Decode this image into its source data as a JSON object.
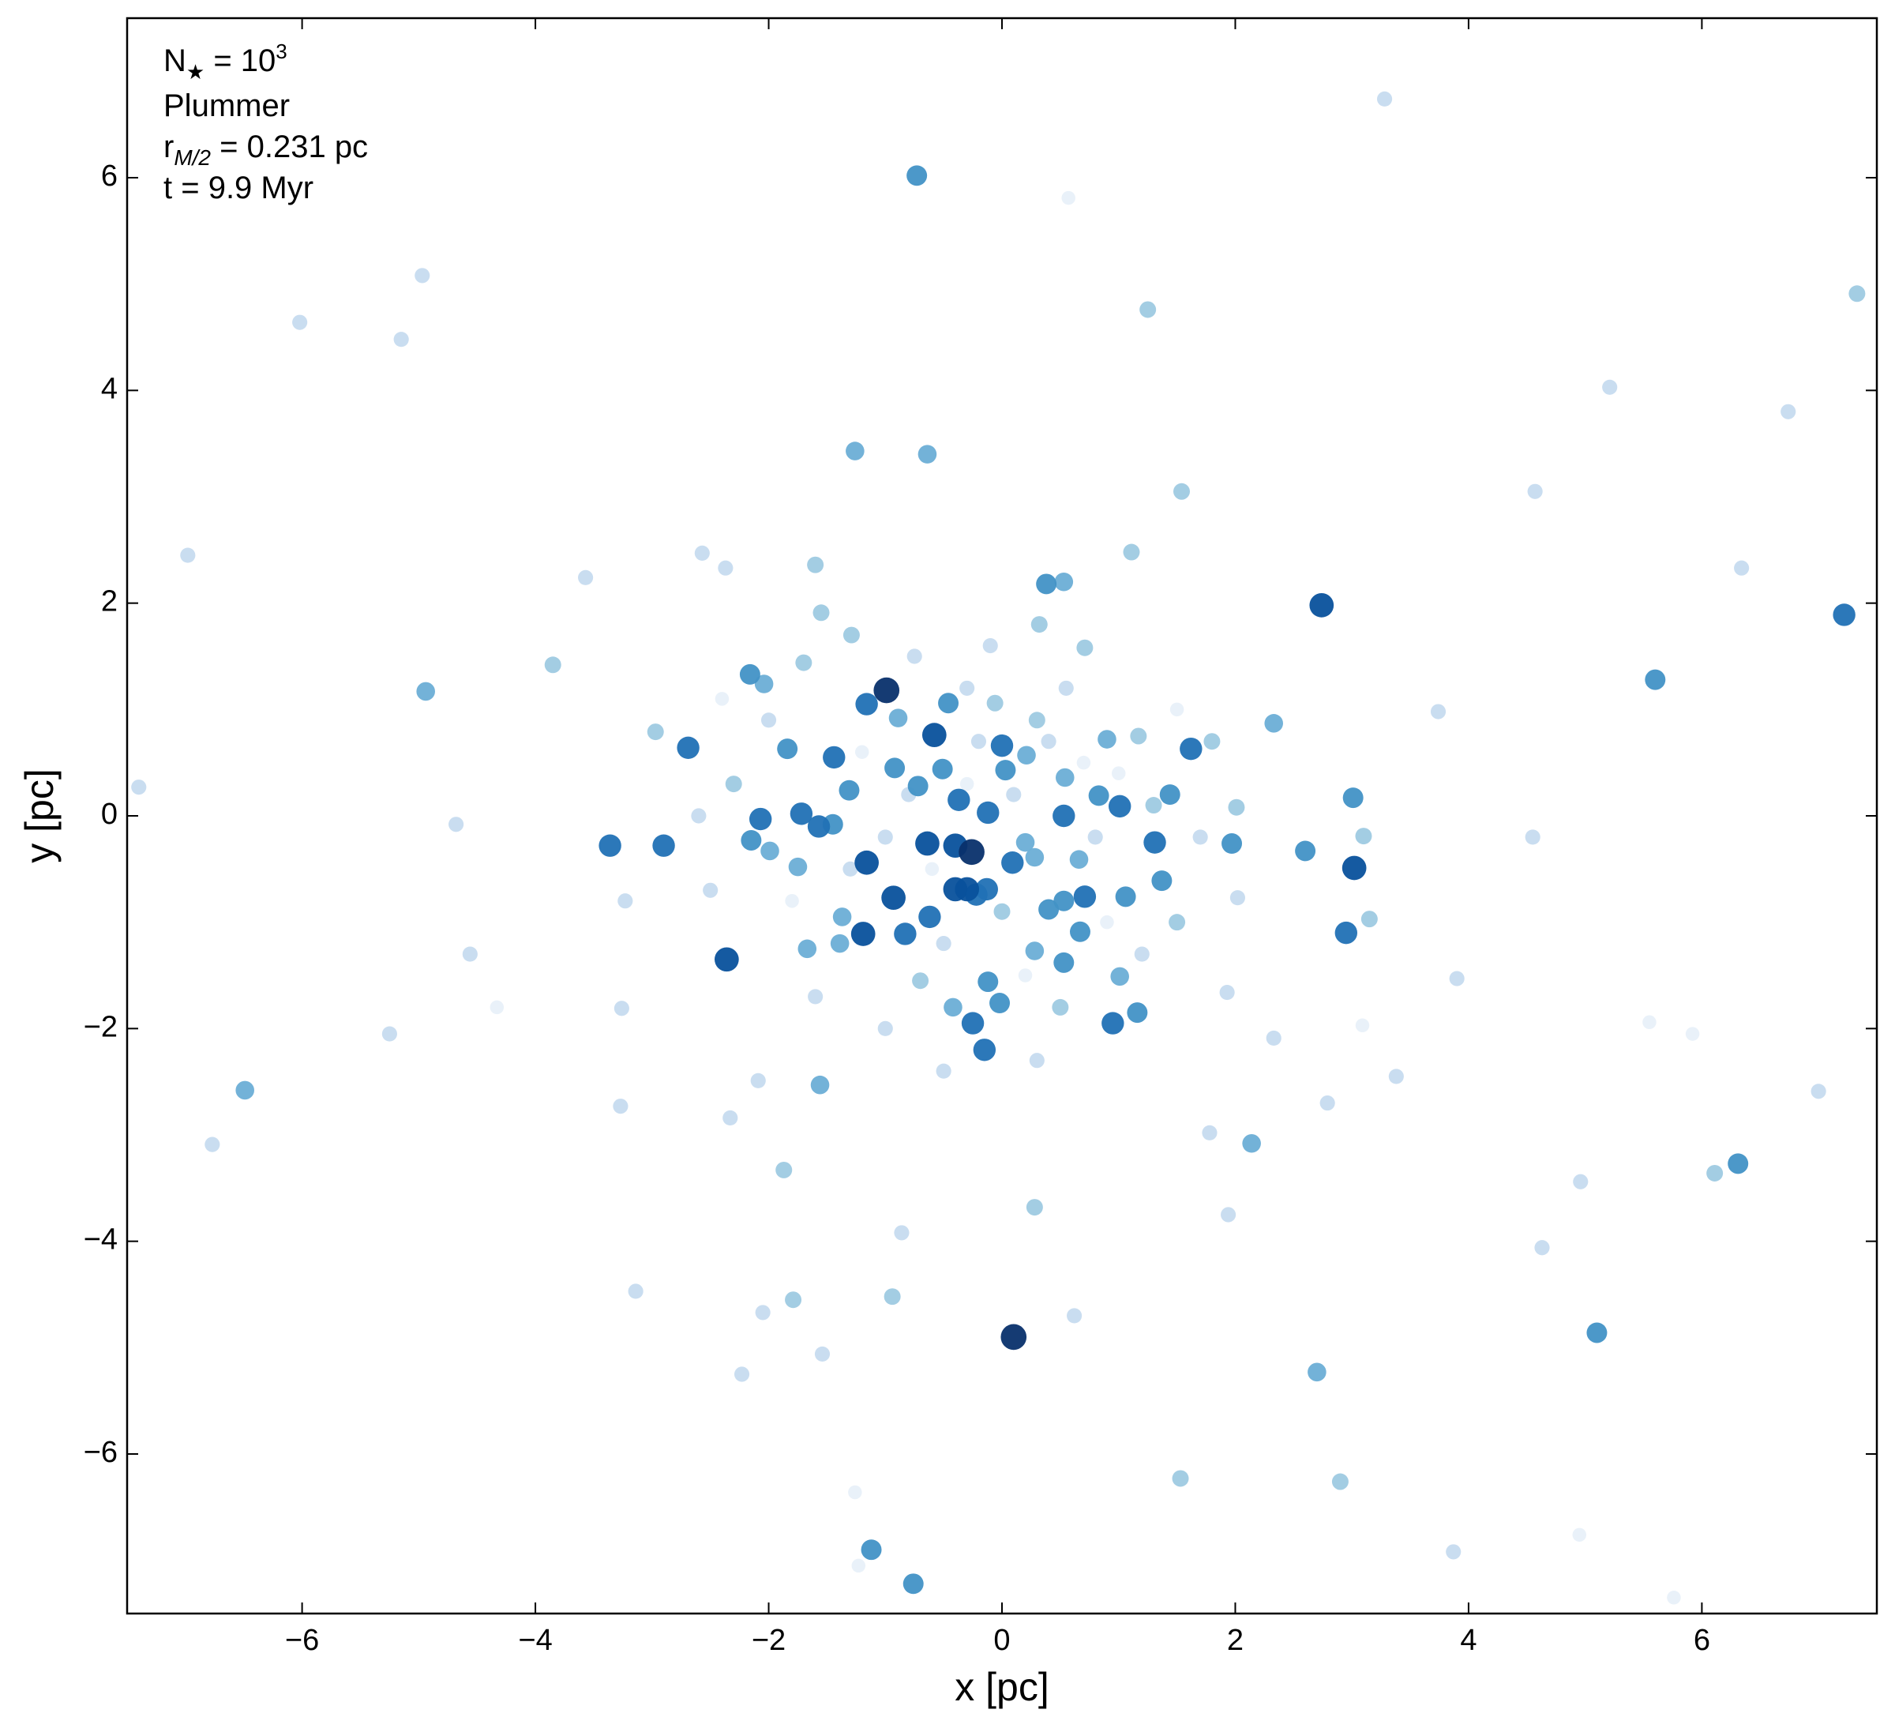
{
  "chart_data": {
    "type": "scatter",
    "xlabel": "x [pc]",
    "ylabel": "y [pc]",
    "annotation": [
      [
        "N",
        "★",
        " = 10",
        "3"
      ],
      [
        "Plummer"
      ],
      [
        "r",
        "M/2",
        " = 0.231 pc"
      ],
      [
        "t = 9.9 Myr"
      ]
    ],
    "xlim": [
      -7.5,
      7.5
    ],
    "ylim": [
      -7.5,
      7.5
    ],
    "xticks": [
      {
        "value": -6,
        "label": "−6"
      },
      {
        "value": -4,
        "label": "−4"
      },
      {
        "value": -2,
        "label": "−2"
      },
      0,
      2,
      4,
      6
    ],
    "yticks": [
      {
        "value": -6,
        "label": "−6"
      },
      {
        "value": -4,
        "label": "−4"
      },
      {
        "value": -2,
        "label": "−2"
      },
      0,
      2,
      4,
      6
    ],
    "grid": false,
    "series": [
      {
        "color": "#e3eef8",
        "x": [
          0.57,
          -4.33,
          3.09,
          5.55,
          5.92,
          5.76,
          4.95,
          -1.23,
          -1.26,
          -1.2,
          -0.6,
          0.7,
          0.2,
          -1.8,
          1.0,
          -0.3,
          0.9,
          -2.4,
          1.5
        ],
        "y": [
          5.81,
          -1.8,
          -1.97,
          -1.94,
          -2.05,
          -7.35,
          -6.76,
          -7.05,
          -6.36,
          0.6,
          -0.5,
          0.5,
          -1.5,
          -0.8,
          0.4,
          0.3,
          -1.0,
          1.1,
          1.0
        ]
      },
      {
        "color": "#c6dbef",
        "x": [
          -6.98,
          4.57,
          6.74,
          5.21,
          -6.02,
          -5.15,
          -4.97,
          3.28,
          7.0,
          3.87,
          4.96,
          4.63,
          4.55,
          6.34,
          3.74,
          0.62,
          -1.54,
          -2.23,
          -2.05,
          -3.14,
          -2.33,
          -2.09,
          -3.27,
          -5.25,
          -6.77,
          -7.4,
          -4.68,
          -4.56,
          -3.26,
          -3.23,
          1.94,
          1.78,
          2.33,
          2.79,
          3.38,
          3.9,
          -2.57,
          -2.37,
          -3.57,
          -0.86,
          1.93,
          2.02,
          -0.3,
          -0.75,
          0.55,
          -2.5,
          -2.6,
          -1.0,
          0.3,
          -0.5,
          1.7,
          -1.0,
          -0.8,
          0.1,
          -0.2,
          0.8,
          -1.3,
          0.4,
          -0.5,
          -2.0,
          -1.6,
          1.2,
          -0.1
        ],
        "y": [
          2.45,
          3.05,
          3.8,
          4.03,
          4.64,
          4.48,
          5.08,
          6.74,
          -2.59,
          -6.92,
          -3.44,
          -4.06,
          -0.2,
          2.33,
          0.98,
          -4.7,
          -5.06,
          -5.25,
          -4.67,
          -4.47,
          -2.84,
          -2.49,
          -2.73,
          -2.05,
          -3.09,
          0.27,
          -0.08,
          -1.3,
          -1.81,
          -0.8,
          -3.75,
          -2.98,
          -2.09,
          -2.7,
          -2.45,
          -1.53,
          2.47,
          2.33,
          2.24,
          -3.92,
          -1.66,
          -0.77,
          1.2,
          1.5,
          1.2,
          -0.7,
          0.0,
          -2.0,
          -2.3,
          -2.4,
          -0.2,
          -0.2,
          0.2,
          0.2,
          0.7,
          -0.2,
          -0.5,
          0.7,
          -1.2,
          0.9,
          -1.7,
          -1.3,
          1.6
        ]
      },
      {
        "color": "#9ecae1",
        "x": [
          7.33,
          1.25,
          1.54,
          1.53,
          2.9,
          6.11,
          0.28,
          -0.94,
          -1.79,
          -1.87,
          -3.85,
          3.15,
          3.1,
          2.01,
          1.11,
          0.32,
          -1.6,
          -1.55,
          -2.97,
          -1.7,
          -1.29,
          0.71,
          1.17,
          -0.06,
          0.3,
          1.3,
          -2.3,
          0.0,
          0.5,
          -0.7,
          1.5,
          1.8
        ],
        "y": [
          4.91,
          4.76,
          3.05,
          -6.23,
          -6.26,
          -3.36,
          -3.68,
          -4.52,
          -4.55,
          -3.33,
          1.42,
          -0.97,
          -0.19,
          0.08,
          2.48,
          1.8,
          2.36,
          1.91,
          0.79,
          1.44,
          1.7,
          1.58,
          0.75,
          1.06,
          0.9,
          0.1,
          0.3,
          -0.9,
          -1.8,
          -1.55,
          -1.0,
          0.7
        ]
      },
      {
        "color": "#6baed6",
        "x": [
          -4.94,
          -6.49,
          2.7,
          -1.26,
          -0.64,
          2.14,
          2.33,
          -1.56,
          0.53,
          0.28,
          -1.99,
          -0.89,
          1.01,
          0.28,
          0.66,
          0.21,
          0.2,
          0.54,
          -1.75,
          -1.37,
          -1.67,
          -1.39,
          -0.42,
          -2.04,
          0.9
        ],
        "y": [
          1.17,
          -2.58,
          -5.23,
          3.43,
          3.4,
          -3.08,
          0.87,
          -2.53,
          2.2,
          -1.27,
          -0.33,
          0.92,
          -1.51,
          -0.39,
          -0.41,
          0.57,
          -0.25,
          0.36,
          -0.48,
          -0.95,
          -1.25,
          -1.2,
          -1.8,
          1.24,
          0.72
        ]
      },
      {
        "color": "#4292c6",
        "x": [
          -0.73,
          5.6,
          6.31,
          5.1,
          -0.76,
          -1.12,
          3.01,
          2.6,
          1.97,
          0.38,
          0.03,
          1.37,
          1.44,
          1.16,
          0.67,
          0.53,
          0.4,
          -0.12,
          -0.02,
          -2.15,
          -2.16,
          -1.84,
          -1.31,
          -1.45,
          -0.92,
          -0.51,
          0.53,
          -0.72,
          0.83,
          1.06,
          -0.46
        ],
        "y": [
          6.02,
          1.28,
          -3.27,
          -4.86,
          -7.22,
          -6.9,
          0.17,
          -0.33,
          -0.26,
          2.18,
          0.43,
          -0.61,
          0.2,
          -1.85,
          -1.09,
          -1.38,
          -0.88,
          -1.56,
          -1.76,
          -0.23,
          1.33,
          0.63,
          0.24,
          -0.08,
          0.45,
          0.44,
          -0.8,
          0.28,
          0.19,
          -0.76,
          1.06
        ]
      },
      {
        "color": "#2171b5",
        "x": [
          7.22,
          -3.36,
          -2.9,
          -2.69,
          2.95,
          1.62,
          -0.62,
          -0.83,
          0.09,
          -0.13,
          -0.37,
          -0.12,
          0.0,
          0.53,
          1.01,
          1.31,
          0.95,
          -0.25,
          -0.15,
          -1.16,
          -1.44,
          -1.72,
          -1.57,
          -2.07,
          -0.22,
          0.71
        ],
        "y": [
          1.89,
          -0.28,
          -0.28,
          0.64,
          -1.1,
          0.63,
          -0.95,
          -1.11,
          -0.44,
          -0.69,
          0.15,
          0.03,
          0.66,
          0.0,
          0.09,
          -0.25,
          -1.95,
          -1.95,
          -2.2,
          1.05,
          0.55,
          0.02,
          -0.1,
          -0.03,
          -0.74,
          -0.76
        ]
      },
      {
        "color": "#08519c",
        "x": [
          2.74,
          -2.36,
          3.02,
          -0.58,
          -0.64,
          -0.4,
          -0.3,
          -0.4,
          -0.93,
          -1.19,
          -1.16
        ],
        "y": [
          1.98,
          -1.35,
          -0.49,
          0.76,
          -0.26,
          -0.28,
          -0.69,
          -0.69,
          -0.77,
          -1.11,
          -0.44
        ]
      },
      {
        "color": "#08306b",
        "x": [
          -0.99,
          0.1,
          -0.26
        ],
        "y": [
          1.18,
          -4.9,
          -0.34
        ]
      }
    ]
  }
}
